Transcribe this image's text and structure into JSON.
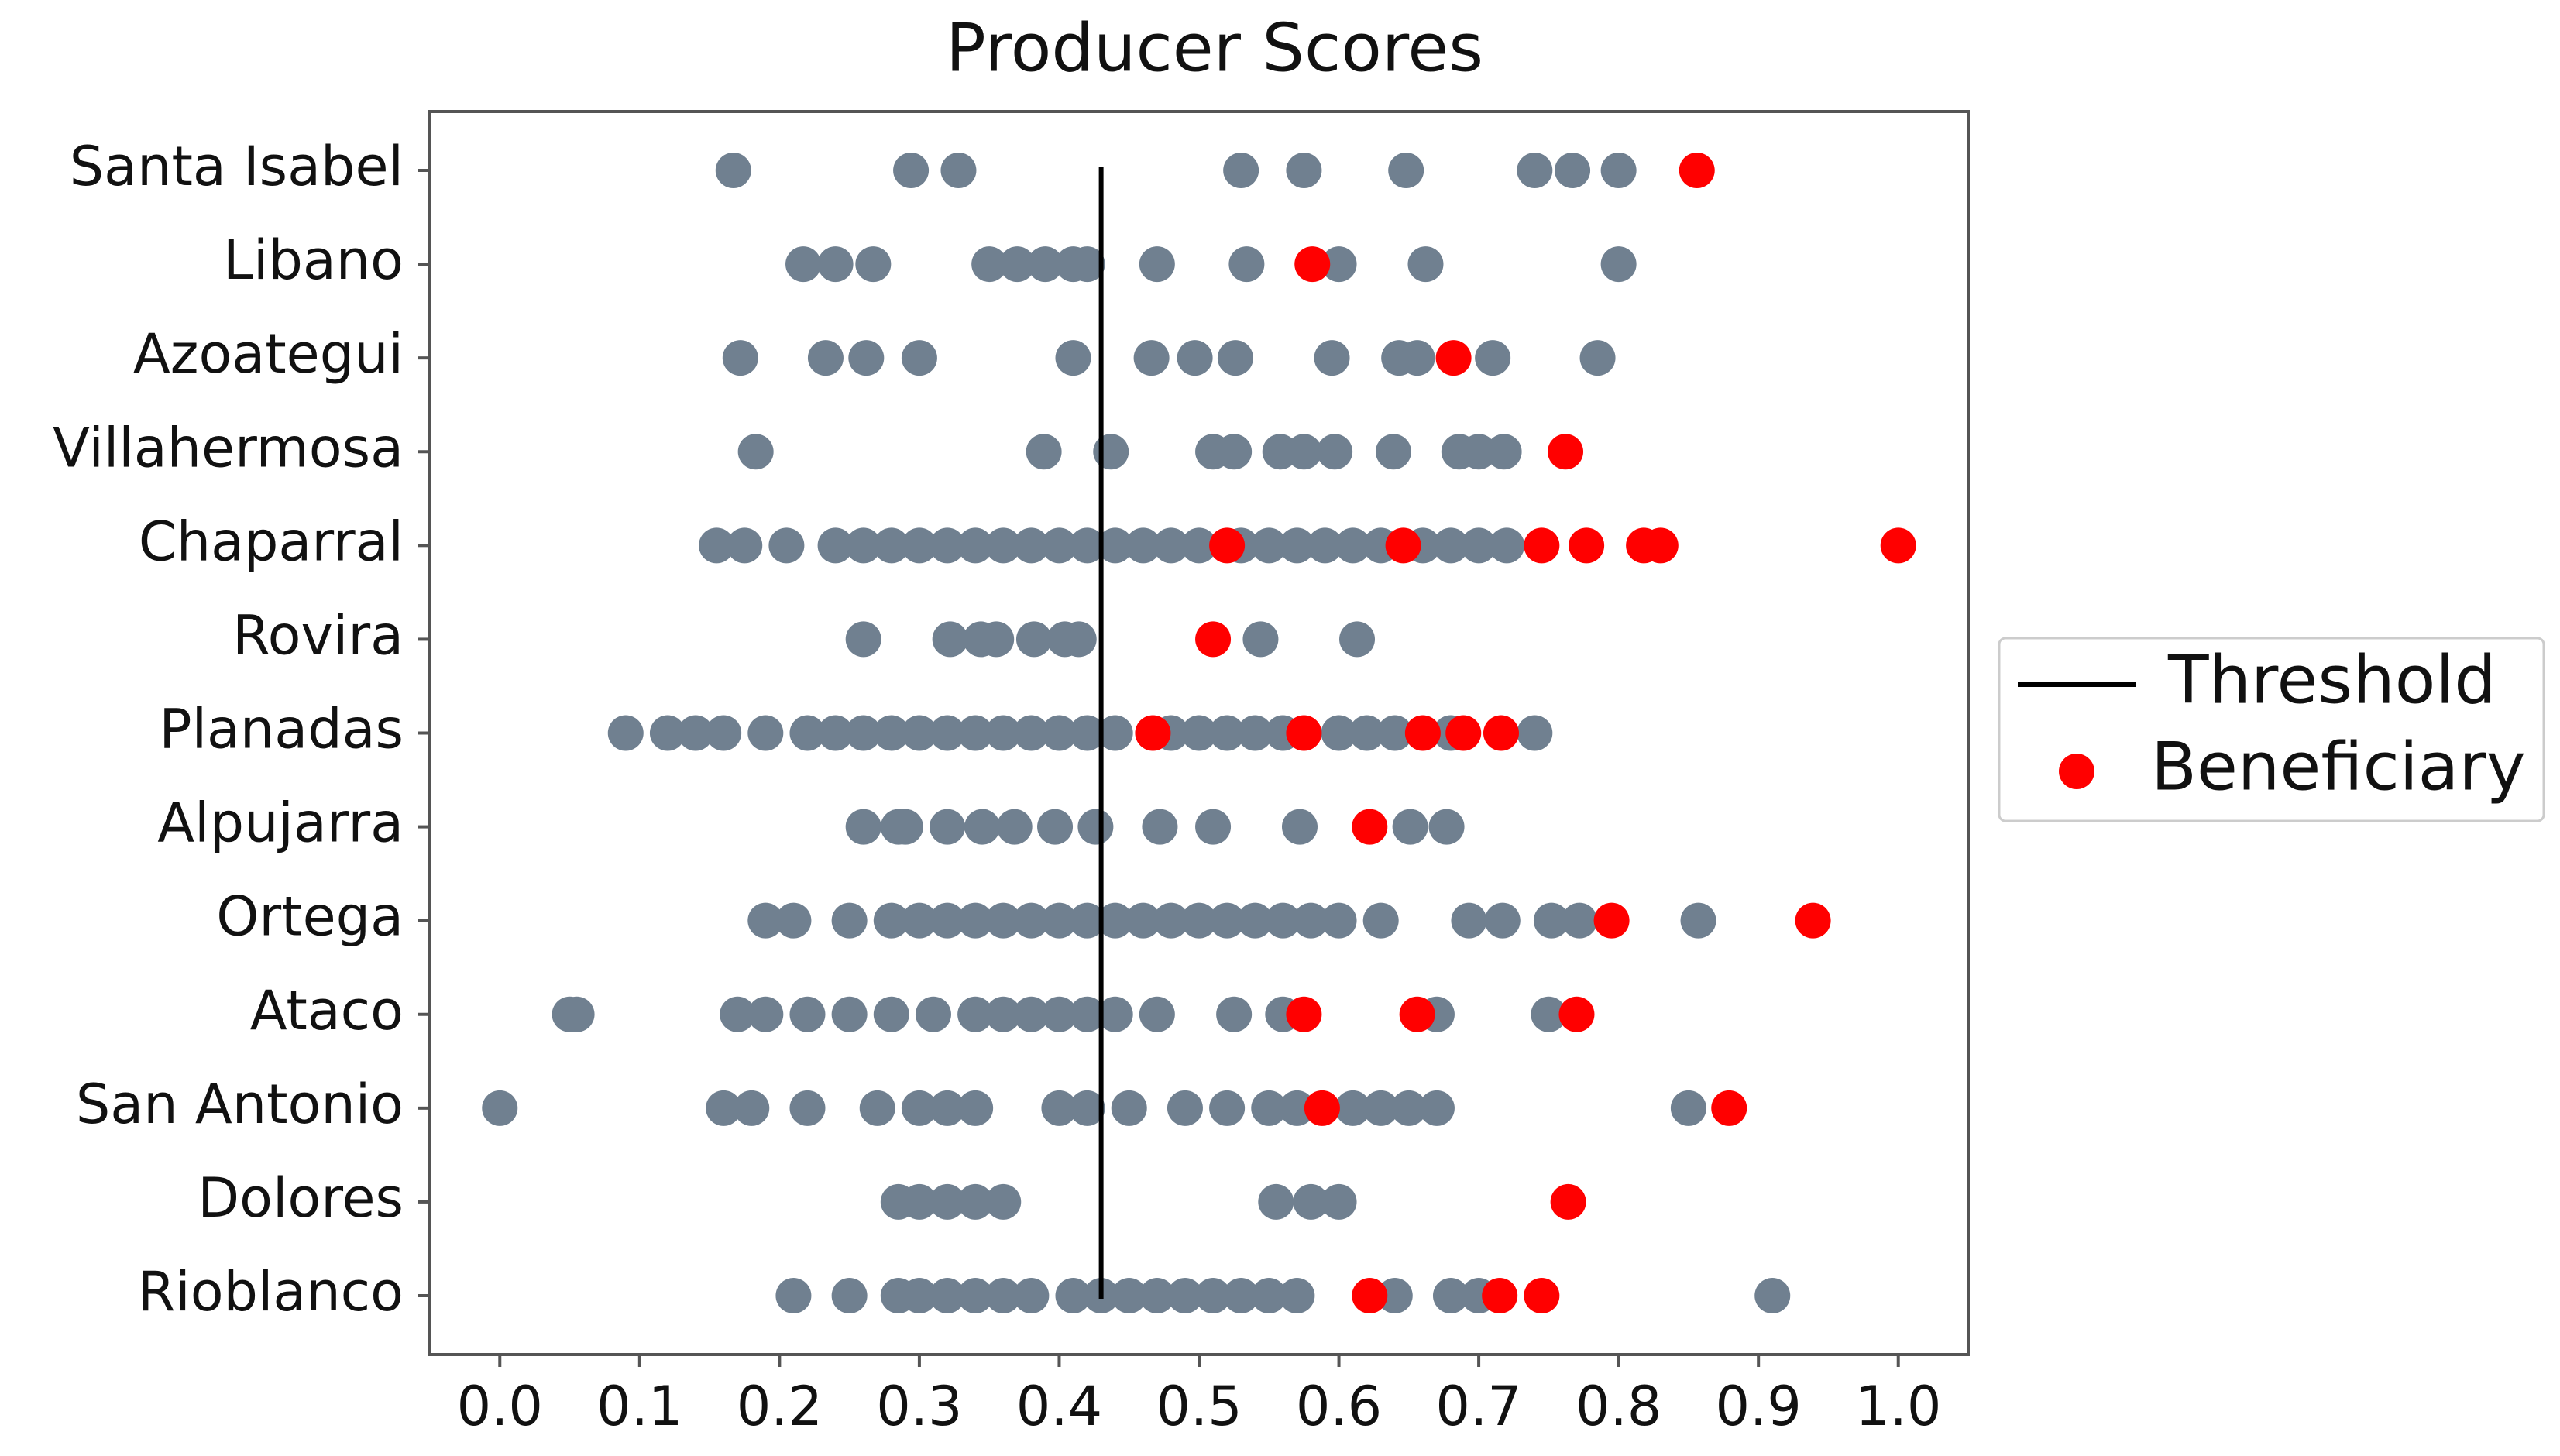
{
  "chart_data": {
    "type": "scatter",
    "title": "Producer Scores",
    "categories": [
      "Santa Isabel",
      "Libano",
      "Azoategui",
      "Villahermosa",
      "Chaparral",
      "Rovira",
      "Planadas",
      "Alpujarra",
      "Ortega",
      "Ataco",
      "San Antonio",
      "Dolores",
      "Rioblanco"
    ],
    "xlim": [
      -0.05,
      1.05
    ],
    "xticks": [
      {
        "value": 0,
        "label": "0.0"
      },
      0.1,
      0.2,
      0.3,
      0.4,
      0.5,
      0.6,
      0.7,
      0.8,
      0.9,
      {
        "value": 1,
        "label": "1.0"
      }
    ],
    "threshold": {
      "name": "Threshold",
      "value": 0.43,
      "color": "#000000"
    },
    "legend": "right",
    "series": [
      {
        "color": "#708090",
        "values": [
          [
            0.167,
            0.294,
            0.328,
            0.53,
            0.575,
            0.648,
            0.74,
            0.767,
            0.8
          ],
          [
            0.217,
            0.24,
            0.267,
            0.35,
            0.37,
            0.39,
            0.41,
            0.42,
            0.47,
            0.534,
            0.6,
            0.662,
            0.8
          ],
          [
            0.172,
            0.233,
            0.262,
            0.3,
            0.41,
            0.466,
            0.497,
            0.526,
            0.595,
            0.643,
            0.656,
            0.71,
            0.785
          ],
          [
            0.183,
            0.389,
            0.437,
            0.51,
            0.525,
            0.558,
            0.575,
            0.597,
            0.639,
            0.686,
            0.7,
            0.718
          ],
          [
            0.155,
            0.175,
            0.205,
            0.24,
            0.26,
            0.28,
            0.3,
            0.32,
            0.34,
            0.36,
            0.38,
            0.4,
            0.42,
            0.44,
            0.46,
            0.48,
            0.5,
            0.53,
            0.55,
            0.57,
            0.59,
            0.61,
            0.63,
            0.66,
            0.68,
            0.7,
            0.72
          ],
          [
            0.26,
            0.322,
            0.344,
            0.355,
            0.382,
            0.404,
            0.414,
            0.544,
            0.613
          ],
          [
            0.09,
            0.12,
            0.14,
            0.16,
            0.19,
            0.22,
            0.24,
            0.26,
            0.28,
            0.3,
            0.32,
            0.34,
            0.36,
            0.38,
            0.4,
            0.42,
            0.44,
            0.48,
            0.5,
            0.52,
            0.54,
            0.56,
            0.6,
            0.62,
            0.64,
            0.68,
            0.74
          ],
          [
            0.26,
            0.285,
            0.29,
            0.32,
            0.345,
            0.368,
            0.397,
            0.426,
            0.472,
            0.51,
            0.572,
            0.651,
            0.677
          ],
          [
            0.19,
            0.21,
            0.25,
            0.28,
            0.3,
            0.32,
            0.34,
            0.36,
            0.38,
            0.4,
            0.42,
            0.44,
            0.46,
            0.48,
            0.5,
            0.52,
            0.54,
            0.56,
            0.58,
            0.6,
            0.63,
            0.693,
            0.717,
            0.752,
            0.772,
            0.857
          ],
          [
            0.05,
            0.055,
            0.17,
            0.19,
            0.22,
            0.25,
            0.28,
            0.31,
            0.34,
            0.36,
            0.38,
            0.4,
            0.42,
            0.44,
            0.47,
            0.525,
            0.56,
            0.67,
            0.75
          ],
          [
            0.0,
            0.16,
            0.18,
            0.22,
            0.27,
            0.3,
            0.32,
            0.34,
            0.4,
            0.42,
            0.45,
            0.49,
            0.52,
            0.55,
            0.57,
            0.61,
            0.63,
            0.65,
            0.67,
            0.85
          ],
          [
            0.285,
            0.3,
            0.32,
            0.34,
            0.36,
            0.555,
            0.58,
            0.6
          ],
          [
            0.21,
            0.25,
            0.285,
            0.3,
            0.32,
            0.34,
            0.36,
            0.38,
            0.41,
            0.43,
            0.45,
            0.47,
            0.49,
            0.51,
            0.53,
            0.55,
            0.57,
            0.64,
            0.68,
            0.7,
            0.91
          ]
        ]
      },
      {
        "name": "Beneficiary",
        "color": "#ff0000",
        "values": [
          [
            0.856
          ],
          [
            0.581
          ],
          [
            0.682
          ],
          [
            0.762
          ],
          [
            0.52,
            0.646,
            0.745,
            0.777,
            0.818,
            0.83,
            1.0
          ],
          [
            0.51
          ],
          [
            0.467,
            0.575,
            0.66,
            0.689,
            0.716
          ],
          [
            0.622
          ],
          [
            0.795,
            0.939
          ],
          [
            0.575,
            0.656,
            0.77
          ],
          [
            0.588,
            0.879
          ],
          [
            0.764
          ],
          [
            0.622,
            0.715,
            0.745
          ]
        ]
      }
    ]
  }
}
